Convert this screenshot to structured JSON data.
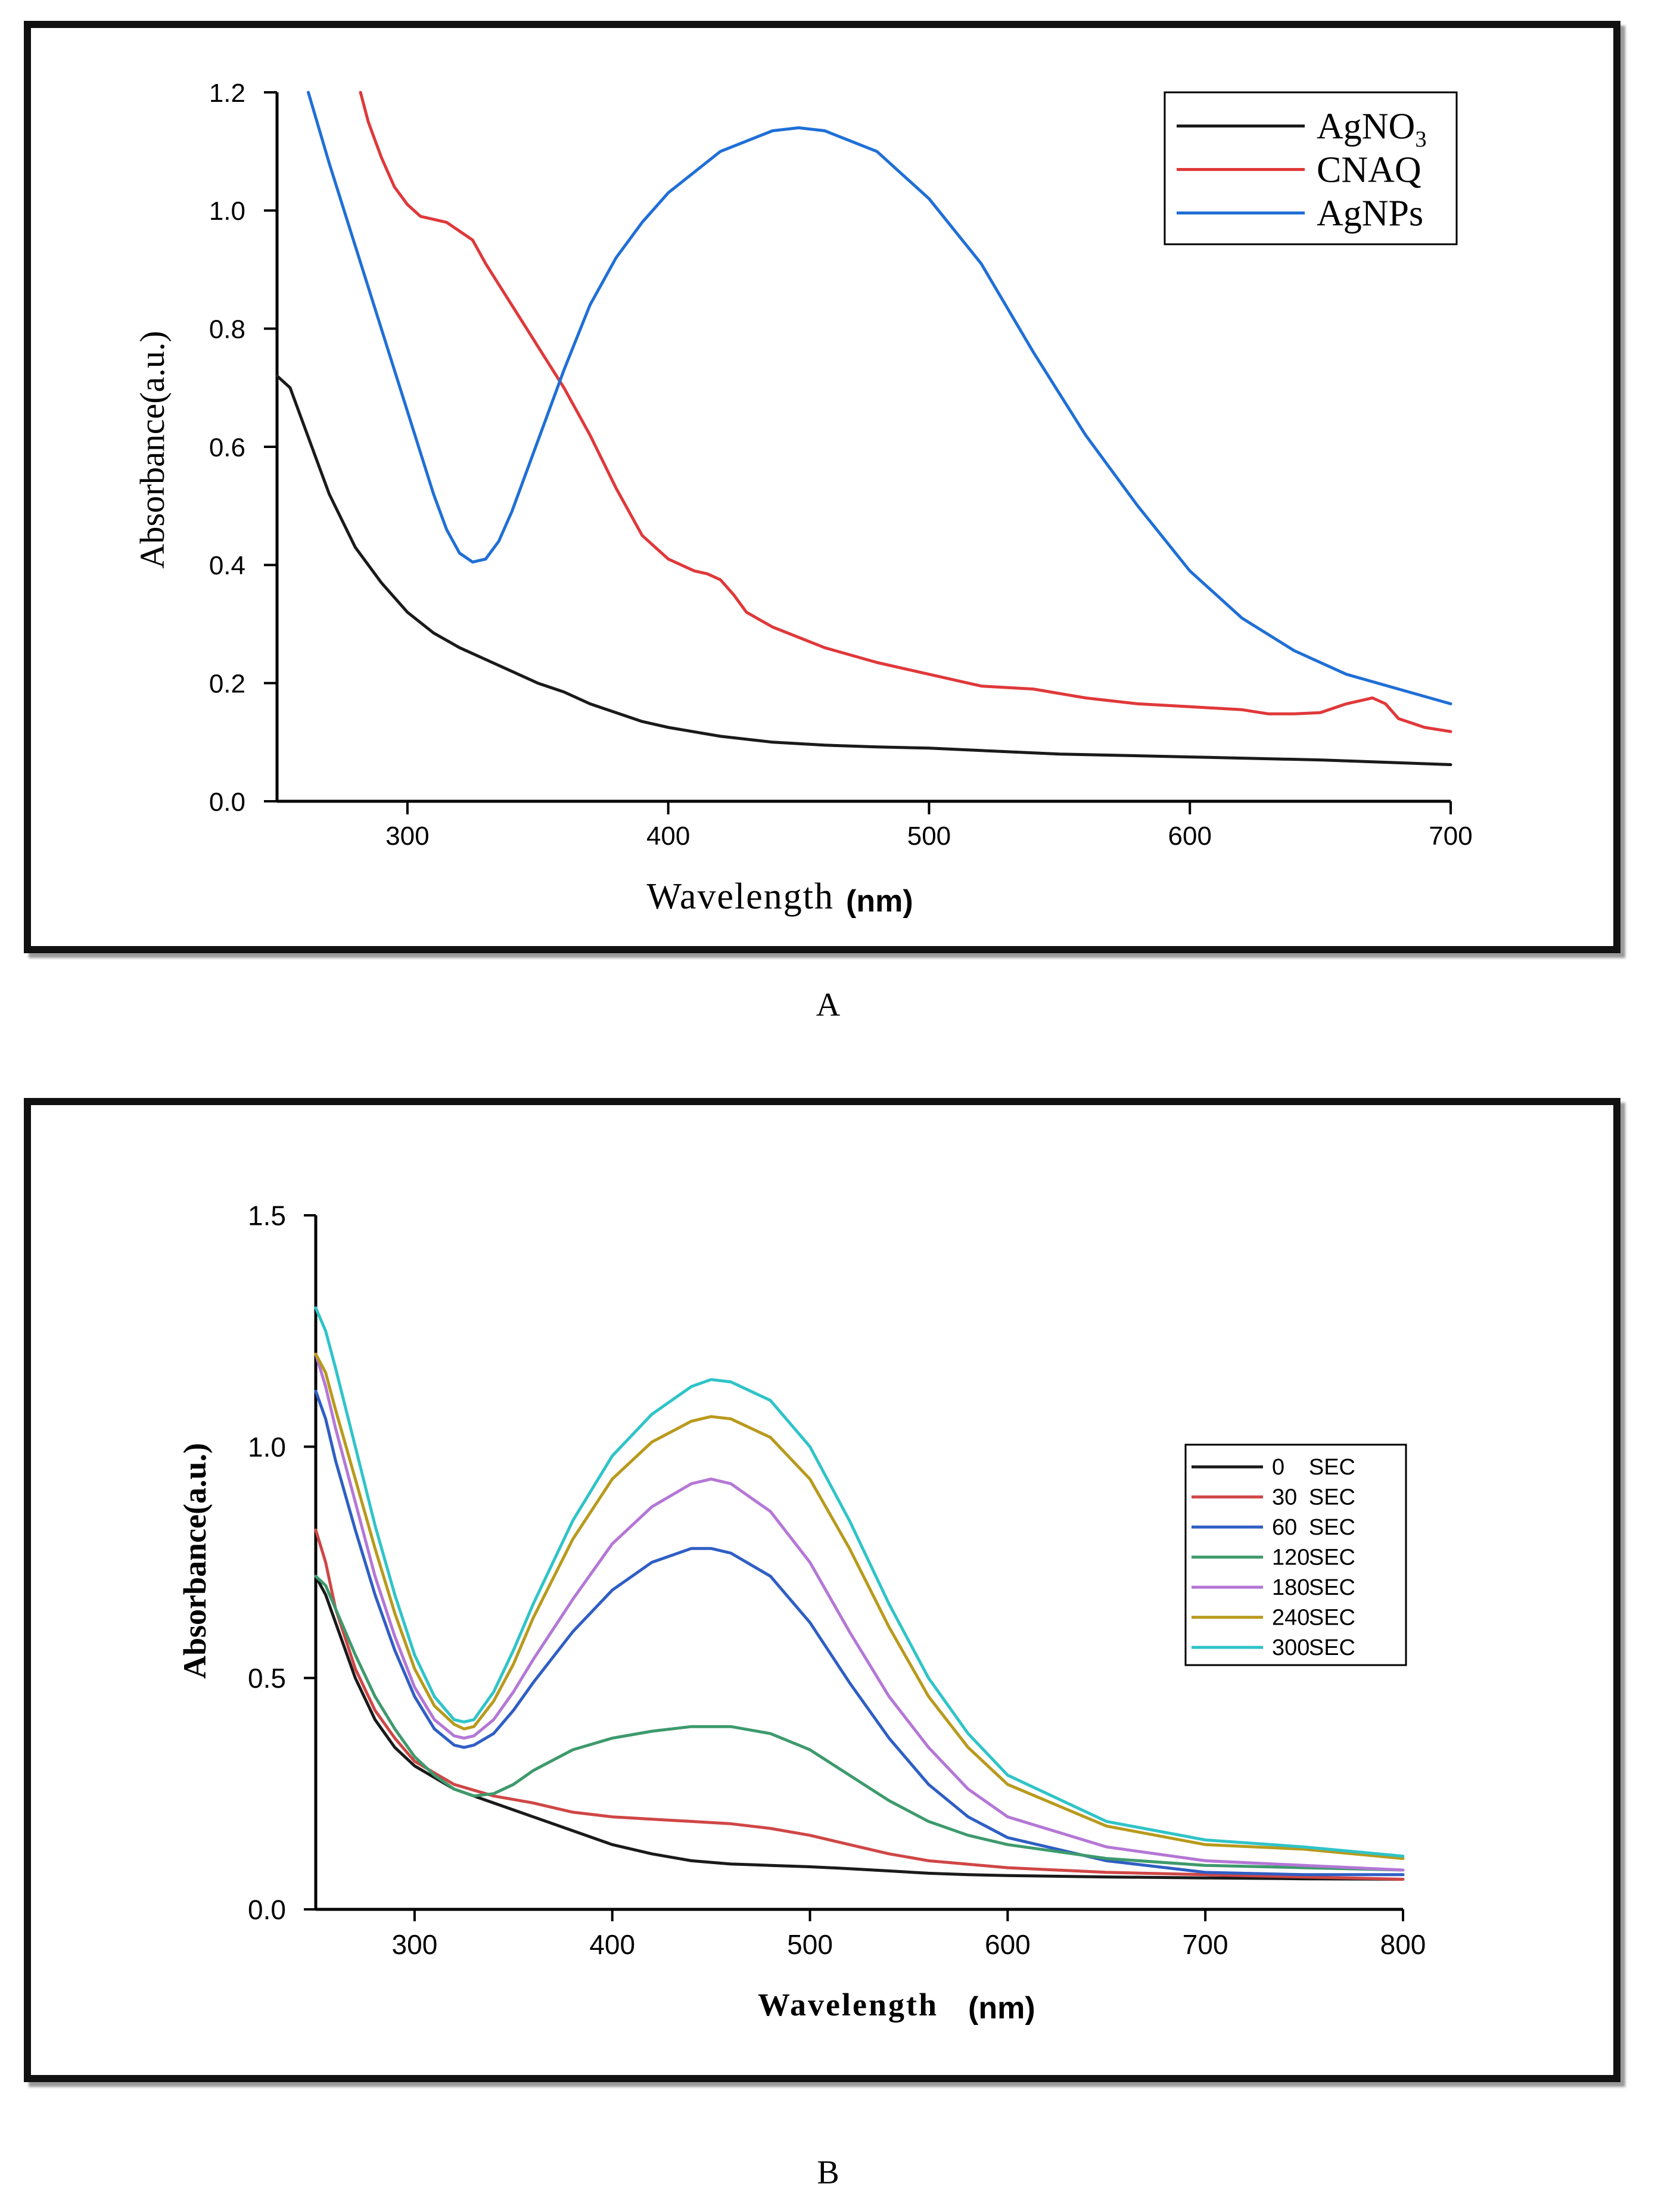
{
  "chart_data": [
    {
      "type": "line",
      "panel_label": "A",
      "title": "",
      "xlabel": "Wavelength",
      "xlabel_unit": "(nm)",
      "ylabel": "Absorbance(a.u.)",
      "xlim": [
        250,
        700
      ],
      "ylim": [
        0,
        1.2
      ],
      "xticks": [
        300,
        400,
        500,
        600,
        700
      ],
      "yticks": [
        "0.0",
        "0.2",
        "0.4",
        "0.6",
        "0.8",
        "1.0",
        "1.2"
      ],
      "legend_position": "top-right",
      "grid": false,
      "series": [
        {
          "name": "AgNO",
          "name_sub": "3",
          "color": "#1a1a1a",
          "x": [
            250,
            255,
            260,
            270,
            280,
            290,
            300,
            310,
            320,
            330,
            340,
            350,
            360,
            370,
            380,
            390,
            400,
            420,
            440,
            460,
            480,
            500,
            550,
            600,
            650,
            700
          ],
          "y": [
            0.72,
            0.7,
            0.64,
            0.52,
            0.43,
            0.37,
            0.32,
            0.285,
            0.26,
            0.24,
            0.22,
            0.2,
            0.185,
            0.165,
            0.15,
            0.135,
            0.125,
            0.11,
            0.1,
            0.095,
            0.092,
            0.09,
            0.08,
            0.075,
            0.07,
            0.062
          ]
        },
        {
          "name": "CNAQ",
          "name_sub": "",
          "color": "#e0383a",
          "x": [
            282,
            285,
            290,
            295,
            300,
            305,
            310,
            315,
            320,
            325,
            330,
            340,
            350,
            360,
            370,
            380,
            390,
            400,
            410,
            415,
            420,
            425,
            430,
            440,
            460,
            480,
            500,
            520,
            540,
            560,
            580,
            600,
            620,
            630,
            640,
            650,
            660,
            670,
            675,
            680,
            690,
            700
          ],
          "y": [
            1.2,
            1.15,
            1.09,
            1.04,
            1.01,
            0.99,
            0.985,
            0.98,
            0.965,
            0.95,
            0.91,
            0.84,
            0.77,
            0.7,
            0.62,
            0.53,
            0.45,
            0.41,
            0.39,
            0.385,
            0.375,
            0.35,
            0.32,
            0.295,
            0.26,
            0.235,
            0.215,
            0.195,
            0.19,
            0.175,
            0.165,
            0.16,
            0.155,
            0.148,
            0.148,
            0.15,
            0.165,
            0.175,
            0.165,
            0.14,
            0.125,
            0.118
          ]
        },
        {
          "name": "AgNPs",
          "name_sub": "",
          "color": "#1f6fd6",
          "x": [
            262,
            270,
            280,
            290,
            300,
            310,
            315,
            320,
            325,
            330,
            335,
            340,
            350,
            360,
            370,
            380,
            390,
            400,
            420,
            440,
            450,
            460,
            480,
            500,
            520,
            540,
            560,
            580,
            600,
            620,
            640,
            660,
            680,
            700
          ],
          "y": [
            1.2,
            1.08,
            0.94,
            0.8,
            0.66,
            0.52,
            0.46,
            0.42,
            0.405,
            0.41,
            0.44,
            0.49,
            0.61,
            0.73,
            0.84,
            0.92,
            0.98,
            1.03,
            1.1,
            1.135,
            1.14,
            1.135,
            1.1,
            1.02,
            0.91,
            0.76,
            0.62,
            0.5,
            0.39,
            0.31,
            0.255,
            0.215,
            0.19,
            0.165
          ]
        }
      ]
    },
    {
      "type": "line",
      "panel_label": "B",
      "title": "",
      "xlabel": "Wavelength",
      "xlabel_unit": "(nm)",
      "ylabel": "Absorbance(a.u.)",
      "xlim": [
        250,
        800
      ],
      "ylim": [
        0,
        1.5
      ],
      "xticks": [
        300,
        400,
        500,
        600,
        700,
        800
      ],
      "yticks": [
        "0.0",
        "0.5",
        "1.0",
        "1.5"
      ],
      "legend_position": "right",
      "grid": false,
      "series": [
        {
          "name": "0",
          "unit": "SEC",
          "color": "#1a1a1a",
          "x": [
            250,
            255,
            260,
            270,
            280,
            290,
            300,
            320,
            340,
            360,
            380,
            400,
            420,
            440,
            460,
            480,
            500,
            520,
            540,
            560,
            580,
            600,
            650,
            700,
            750,
            800
          ],
          "y": [
            0.72,
            0.68,
            0.62,
            0.5,
            0.41,
            0.35,
            0.31,
            0.26,
            0.23,
            0.2,
            0.17,
            0.14,
            0.12,
            0.105,
            0.098,
            0.095,
            0.092,
            0.088,
            0.083,
            0.078,
            0.075,
            0.073,
            0.07,
            0.068,
            0.066,
            0.065
          ]
        },
        {
          "name": "30",
          "unit": "SEC",
          "color": "#d04646",
          "x": [
            250,
            255,
            260,
            270,
            280,
            290,
            300,
            320,
            340,
            360,
            380,
            400,
            420,
            440,
            460,
            480,
            500,
            520,
            540,
            560,
            600,
            650,
            700,
            750,
            800
          ],
          "y": [
            0.82,
            0.75,
            0.65,
            0.52,
            0.43,
            0.37,
            0.32,
            0.27,
            0.245,
            0.23,
            0.21,
            0.2,
            0.195,
            0.19,
            0.185,
            0.175,
            0.16,
            0.14,
            0.12,
            0.105,
            0.09,
            0.08,
            0.075,
            0.07,
            0.065
          ]
        },
        {
          "name": "60",
          "unit": "SEC",
          "color": "#2f5ec4",
          "x": [
            250,
            255,
            260,
            270,
            280,
            290,
            300,
            310,
            320,
            325,
            330,
            340,
            350,
            360,
            380,
            400,
            420,
            440,
            450,
            460,
            480,
            500,
            520,
            540,
            560,
            580,
            600,
            650,
            700,
            750,
            800
          ],
          "y": [
            1.12,
            1.06,
            0.97,
            0.82,
            0.68,
            0.56,
            0.46,
            0.39,
            0.355,
            0.35,
            0.355,
            0.38,
            0.43,
            0.49,
            0.6,
            0.69,
            0.75,
            0.78,
            0.78,
            0.77,
            0.72,
            0.62,
            0.49,
            0.37,
            0.27,
            0.2,
            0.155,
            0.105,
            0.08,
            0.075,
            0.075
          ]
        },
        {
          "name": "120",
          "unit": "SEC",
          "color": "#3d9a6c",
          "x": [
            250,
            255,
            260,
            270,
            280,
            290,
            300,
            310,
            320,
            330,
            340,
            350,
            360,
            380,
            400,
            420,
            440,
            460,
            480,
            500,
            520,
            540,
            560,
            580,
            600,
            650,
            700,
            750,
            800
          ],
          "y": [
            0.72,
            0.7,
            0.65,
            0.55,
            0.46,
            0.39,
            0.33,
            0.29,
            0.26,
            0.245,
            0.25,
            0.27,
            0.3,
            0.345,
            0.37,
            0.385,
            0.395,
            0.395,
            0.38,
            0.345,
            0.29,
            0.235,
            0.19,
            0.16,
            0.14,
            0.11,
            0.095,
            0.09,
            0.085
          ]
        },
        {
          "name": "180",
          "unit": "SEC",
          "color": "#b477d6",
          "x": [
            250,
            255,
            260,
            270,
            280,
            290,
            300,
            310,
            320,
            325,
            330,
            340,
            350,
            360,
            380,
            400,
            420,
            440,
            450,
            460,
            480,
            500,
            520,
            540,
            560,
            580,
            600,
            650,
            700,
            750,
            800
          ],
          "y": [
            1.2,
            1.13,
            1.04,
            0.88,
            0.72,
            0.59,
            0.48,
            0.41,
            0.375,
            0.37,
            0.375,
            0.41,
            0.47,
            0.54,
            0.67,
            0.79,
            0.87,
            0.92,
            0.93,
            0.92,
            0.86,
            0.75,
            0.6,
            0.46,
            0.35,
            0.26,
            0.2,
            0.135,
            0.105,
            0.095,
            0.085
          ]
        },
        {
          "name": "240",
          "unit": "SEC",
          "color": "#b89a1c",
          "x": [
            250,
            255,
            260,
            270,
            280,
            290,
            300,
            310,
            320,
            325,
            330,
            340,
            350,
            360,
            380,
            400,
            420,
            440,
            450,
            460,
            480,
            500,
            520,
            540,
            560,
            580,
            600,
            650,
            700,
            750,
            800
          ],
          "y": [
            1.2,
            1.16,
            1.08,
            0.93,
            0.78,
            0.64,
            0.52,
            0.44,
            0.4,
            0.39,
            0.395,
            0.45,
            0.53,
            0.63,
            0.8,
            0.93,
            1.01,
            1.055,
            1.065,
            1.06,
            1.02,
            0.93,
            0.78,
            0.61,
            0.46,
            0.35,
            0.27,
            0.18,
            0.14,
            0.13,
            0.11
          ]
        },
        {
          "name": "300",
          "unit": "SEC",
          "color": "#2fc4c8",
          "x": [
            250,
            255,
            260,
            270,
            280,
            290,
            300,
            310,
            320,
            325,
            330,
            340,
            350,
            360,
            380,
            400,
            420,
            440,
            450,
            460,
            480,
            500,
            520,
            540,
            560,
            580,
            600,
            650,
            700,
            750,
            800
          ],
          "y": [
            1.3,
            1.25,
            1.17,
            1.0,
            0.83,
            0.68,
            0.55,
            0.46,
            0.41,
            0.405,
            0.41,
            0.47,
            0.56,
            0.66,
            0.84,
            0.98,
            1.07,
            1.13,
            1.145,
            1.14,
            1.1,
            1.0,
            0.84,
            0.66,
            0.5,
            0.38,
            0.29,
            0.19,
            0.15,
            0.135,
            0.115
          ]
        }
      ]
    }
  ]
}
